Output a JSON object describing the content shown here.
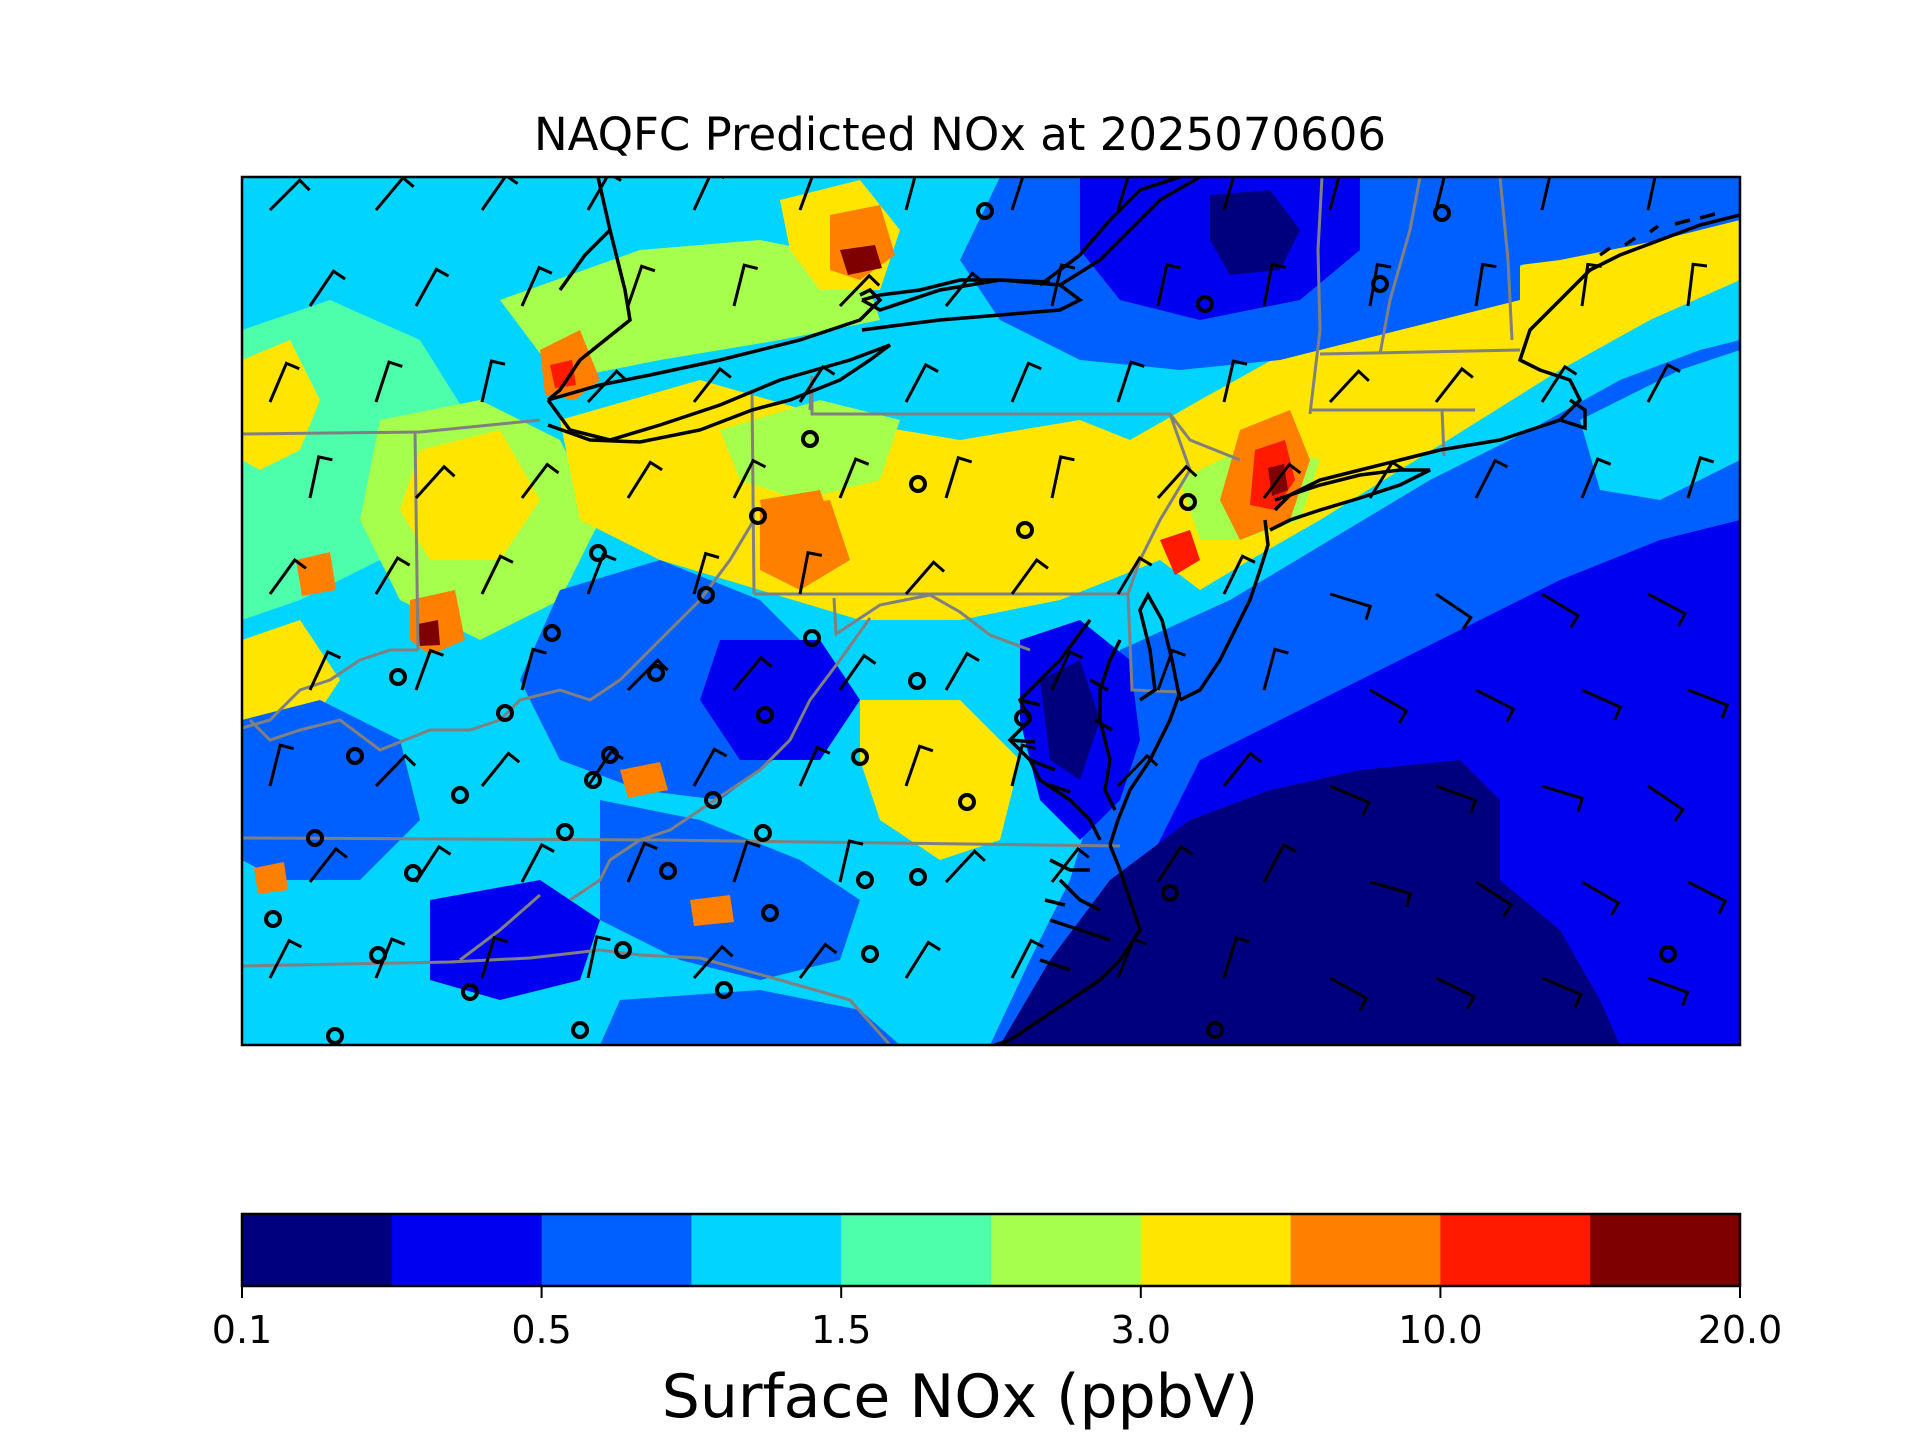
{
  "title": "NAQFC Predicted NOx at 2025070606",
  "colorbar": {
    "label": "Surface NOx (ppbV)",
    "ticks": [
      "0.1",
      "0.5",
      "1.5",
      "3.0",
      "10.0",
      "20.0"
    ],
    "colors": [
      "#00007f",
      "#0000f1",
      "#0060ff",
      "#00d4ff",
      "#4dffaa",
      "#a6ff4d",
      "#ffe500",
      "#ff7f00",
      "#ff1a00",
      "#7f0000"
    ]
  },
  "map": {
    "land_outline_color": "#000000",
    "state_border_color": "#808080",
    "station_marker": "circle"
  }
}
